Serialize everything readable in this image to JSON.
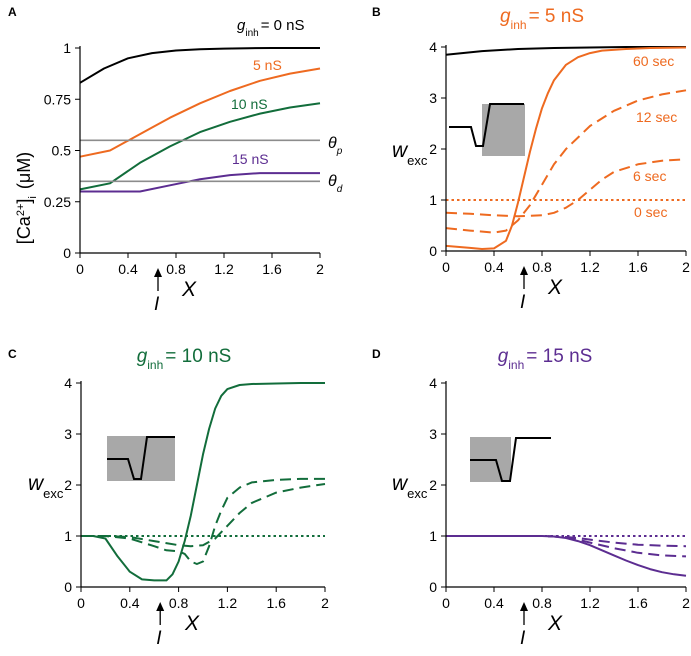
{
  "chart_data": [
    {
      "panel": "A",
      "type": "line",
      "xlabel": "X",
      "xmarker_label": "I",
      "xmarker_value": 0.6,
      "ylabel_main": "[Ca",
      "ylabel_sup": "2+",
      "ylabel_end": "]",
      "ylabel_sub": "i",
      "ylabel_unit": "(μM)",
      "xlim": [
        0,
        2
      ],
      "ylim": [
        0,
        1
      ],
      "xticks": [
        "0",
        "0.4",
        "0.8",
        "1.2",
        "1.6",
        "2"
      ],
      "xtick_values": [
        0,
        0.4,
        0.8,
        1.2,
        1.6,
        2
      ],
      "yticks": [
        "0",
        "0.25",
        "0.5",
        "0.75",
        "1"
      ],
      "ytick_values": [
        0,
        0.25,
        0.5,
        0.75,
        1
      ],
      "series": [
        {
          "name": "0 nS",
          "color": "#000000",
          "style": "solid",
          "x": [
            0,
            0.2,
            0.4,
            0.6,
            0.8,
            1.0,
            1.2,
            1.4,
            1.6,
            1.8,
            2.0
          ],
          "y": [
            0.83,
            0.9,
            0.95,
            0.975,
            0.988,
            0.994,
            0.997,
            0.999,
            1.0,
            1.0,
            1.0
          ]
        },
        {
          "name": "5 nS",
          "color": "#ee6a20",
          "style": "solid",
          "x": [
            0,
            0.25,
            0.5,
            0.75,
            1.0,
            1.25,
            1.5,
            1.75,
            2.0
          ],
          "y": [
            0.47,
            0.5,
            0.58,
            0.66,
            0.73,
            0.79,
            0.84,
            0.875,
            0.9
          ]
        },
        {
          "name": "10 nS",
          "color": "#126d3b",
          "style": "solid",
          "x": [
            0,
            0.25,
            0.5,
            0.75,
            1.0,
            1.25,
            1.5,
            1.75,
            2.0
          ],
          "y": [
            0.31,
            0.34,
            0.44,
            0.52,
            0.59,
            0.64,
            0.68,
            0.71,
            0.73
          ]
        },
        {
          "name": "15 nS",
          "color": "#5c2d91",
          "style": "solid",
          "x": [
            0,
            0.25,
            0.5,
            0.75,
            1.0,
            1.25,
            1.5,
            1.75,
            2.0
          ],
          "y": [
            0.3,
            0.3,
            0.3,
            0.33,
            0.36,
            0.38,
            0.39,
            0.39,
            0.39
          ]
        },
        {
          "name": "theta_p",
          "color": "#8c8c8c",
          "style": "solid",
          "x": [
            0,
            2
          ],
          "y": [
            0.55,
            0.55
          ]
        },
        {
          "name": "theta_d",
          "color": "#8c8c8c",
          "style": "solid",
          "x": [
            0,
            2
          ],
          "y": [
            0.35,
            0.35
          ]
        }
      ],
      "annotations": {
        "g0_sym": "g",
        "g0_sub": "inh",
        "g0_val": "= 0 nS",
        "l5": "5 nS",
        "l10": "10 nS",
        "l15": "15 nS",
        "theta_p_sym": "θ",
        "theta_p_sub": "p",
        "theta_d_sym": "θ",
        "theta_d_sub": "d"
      }
    },
    {
      "panel": "B",
      "type": "line",
      "title_sym": "g",
      "title_sub": "inh",
      "title_val": "= 5 nS",
      "title_color": "#ee6a20",
      "xlabel": "X",
      "xmarker_label": "I",
      "xmarker_value": 0.6,
      "ylabel_sym": "w",
      "ylabel_sub": "exc",
      "xlim": [
        0,
        2
      ],
      "ylim": [
        0,
        4
      ],
      "xticks": [
        "0",
        "0.4",
        "0.8",
        "1.2",
        "1.6",
        "2"
      ],
      "xtick_values": [
        0,
        0.4,
        0.8,
        1.2,
        1.6,
        2
      ],
      "yticks": [
        "0",
        "1",
        "2",
        "3",
        "4"
      ],
      "ytick_values": [
        0,
        1,
        2,
        3,
        4
      ],
      "series": [
        {
          "name": "0 nS reference",
          "color": "#000000",
          "style": "solid",
          "x": [
            0,
            0.3,
            0.6,
            0.9,
            1.2,
            1.5,
            1.8,
            2.0
          ],
          "y": [
            3.85,
            3.92,
            3.96,
            3.98,
            3.99,
            4.0,
            4.0,
            4.0
          ]
        },
        {
          "name": "60 sec",
          "color": "#ee6a20",
          "style": "solid",
          "x": [
            0,
            0.2,
            0.3,
            0.4,
            0.5,
            0.55,
            0.6,
            0.65,
            0.7,
            0.75,
            0.8,
            0.85,
            0.9,
            1.0,
            1.1,
            1.2,
            1.3,
            1.5,
            1.7,
            2.0
          ],
          "y": [
            0.1,
            0.06,
            0.04,
            0.05,
            0.2,
            0.5,
            0.95,
            1.45,
            1.95,
            2.4,
            2.8,
            3.1,
            3.35,
            3.65,
            3.8,
            3.88,
            3.93,
            3.96,
            3.98,
            3.99
          ]
        },
        {
          "name": "12 sec",
          "color": "#ee6a20",
          "style": "dashed",
          "x": [
            0,
            0.2,
            0.4,
            0.5,
            0.6,
            0.7,
            0.8,
            0.9,
            1.0,
            1.2,
            1.4,
            1.6,
            1.8,
            2.0
          ],
          "y": [
            0.45,
            0.4,
            0.36,
            0.4,
            0.6,
            0.9,
            1.3,
            1.7,
            2.0,
            2.45,
            2.75,
            2.95,
            3.07,
            3.15
          ]
        },
        {
          "name": "6 sec",
          "color": "#ee6a20",
          "style": "dashed",
          "x": [
            0,
            0.2,
            0.4,
            0.6,
            0.8,
            0.9,
            1.0,
            1.1,
            1.2,
            1.3,
            1.4,
            1.6,
            1.8,
            2.0
          ],
          "y": [
            0.75,
            0.73,
            0.7,
            0.68,
            0.7,
            0.75,
            0.85,
            1.0,
            1.2,
            1.4,
            1.55,
            1.7,
            1.77,
            1.8
          ]
        },
        {
          "name": "0 sec",
          "color": "#ee6a20",
          "style": "dotted",
          "x": [
            0,
            2
          ],
          "y": [
            1,
            1
          ]
        }
      ],
      "annotations": {
        "l60": "60 sec",
        "l12": "12 sec",
        "l6": "6 sec",
        "l0": "0 sec"
      }
    },
    {
      "panel": "C",
      "type": "line",
      "title_sym": "g",
      "title_sub": "inh",
      "title_val": "= 10 nS",
      "title_color": "#126d3b",
      "xlabel": "X",
      "xmarker_label": "I",
      "xmarker_value": 0.6,
      "ylabel_sym": "w",
      "ylabel_sub": "exc",
      "xlim": [
        0,
        2
      ],
      "ylim": [
        0,
        4
      ],
      "xticks": [
        "0",
        "0.4",
        "0.8",
        "1.2",
        "1.6",
        "2"
      ],
      "xtick_values": [
        0,
        0.4,
        0.8,
        1.2,
        1.6,
        2
      ],
      "yticks": [
        "0",
        "1",
        "2",
        "3",
        "4"
      ],
      "ytick_values": [
        0,
        1,
        2,
        3,
        4
      ],
      "series": [
        {
          "name": "60 sec",
          "color": "#126d3b",
          "style": "solid",
          "x": [
            0,
            0.1,
            0.2,
            0.3,
            0.4,
            0.5,
            0.6,
            0.7,
            0.75,
            0.8,
            0.85,
            0.9,
            0.95,
            1.0,
            1.05,
            1.1,
            1.15,
            1.2,
            1.3,
            1.4,
            1.6,
            1.8,
            2.0
          ],
          "y": [
            1.0,
            1.0,
            0.95,
            0.6,
            0.3,
            0.15,
            0.13,
            0.13,
            0.25,
            0.5,
            0.9,
            1.4,
            2.0,
            2.6,
            3.1,
            3.5,
            3.75,
            3.88,
            3.96,
            3.98,
            3.99,
            4.0,
            4.0
          ]
        },
        {
          "name": "12 sec",
          "color": "#126d3b",
          "style": "dashed",
          "x": [
            0,
            0.2,
            0.4,
            0.6,
            0.7,
            0.8,
            0.85,
            0.9,
            0.95,
            1.0,
            1.05,
            1.1,
            1.15,
            1.2,
            1.3,
            1.4,
            1.6,
            1.8,
            2.0
          ],
          "y": [
            1.0,
            1.0,
            0.95,
            0.8,
            0.72,
            0.7,
            0.65,
            0.5,
            0.45,
            0.5,
            0.8,
            1.2,
            1.5,
            1.75,
            1.95,
            2.05,
            2.1,
            2.12,
            2.12
          ]
        },
        {
          "name": "6 sec",
          "color": "#126d3b",
          "style": "dashed",
          "x": [
            0,
            0.2,
            0.4,
            0.6,
            0.8,
            0.9,
            1.0,
            1.1,
            1.2,
            1.3,
            1.4,
            1.6,
            1.8,
            2.0
          ],
          "y": [
            1.0,
            1.0,
            0.98,
            0.9,
            0.82,
            0.8,
            0.82,
            0.95,
            1.2,
            1.45,
            1.65,
            1.85,
            1.95,
            2.02
          ]
        },
        {
          "name": "0 sec",
          "color": "#126d3b",
          "style": "dotted",
          "x": [
            0,
            2
          ],
          "y": [
            1,
            1
          ]
        }
      ]
    },
    {
      "panel": "D",
      "type": "line",
      "title_sym": "g",
      "title_sub": "inh",
      "title_val": "= 15 nS",
      "title_color": "#5c2d91",
      "xlabel": "X",
      "xmarker_label": "I",
      "xmarker_value": 0.6,
      "ylabel_sym": "w",
      "ylabel_sub": "exc",
      "xlim": [
        0,
        2
      ],
      "ylim": [
        0,
        4
      ],
      "xticks": [
        "0",
        "0.4",
        "0.8",
        "1.2",
        "1.6",
        "2"
      ],
      "xtick_values": [
        0,
        0.4,
        0.8,
        1.2,
        1.6,
        2
      ],
      "yticks": [
        "0",
        "1",
        "2",
        "3",
        "4"
      ],
      "ytick_values": [
        0,
        1,
        2,
        3,
        4
      ],
      "series": [
        {
          "name": "60 sec",
          "color": "#5c2d91",
          "style": "solid",
          "x": [
            0,
            0.4,
            0.8,
            0.9,
            1.0,
            1.1,
            1.2,
            1.3,
            1.4,
            1.5,
            1.6,
            1.7,
            1.8,
            1.9,
            2.0
          ],
          "y": [
            1.0,
            1.0,
            1.0,
            0.99,
            0.96,
            0.9,
            0.82,
            0.72,
            0.62,
            0.52,
            0.43,
            0.35,
            0.29,
            0.25,
            0.22
          ]
        },
        {
          "name": "12 sec",
          "color": "#5c2d91",
          "style": "dashed",
          "x": [
            0,
            0.4,
            0.8,
            0.9,
            1.0,
            1.1,
            1.2,
            1.4,
            1.6,
            1.8,
            2.0
          ],
          "y": [
            1.0,
            1.0,
            1.0,
            0.99,
            0.97,
            0.93,
            0.87,
            0.76,
            0.67,
            0.62,
            0.6
          ]
        },
        {
          "name": "6 sec",
          "color": "#5c2d91",
          "style": "dashed",
          "x": [
            0,
            0.4,
            0.8,
            0.9,
            1.0,
            1.1,
            1.2,
            1.4,
            1.6,
            1.8,
            2.0
          ],
          "y": [
            1.0,
            1.0,
            1.0,
            0.99,
            0.98,
            0.96,
            0.93,
            0.87,
            0.83,
            0.81,
            0.8
          ]
        },
        {
          "name": "0 sec",
          "color": "#5c2d91",
          "style": "dotted",
          "x": [
            0,
            2
          ],
          "y": [
            1,
            1
          ]
        }
      ]
    }
  ]
}
